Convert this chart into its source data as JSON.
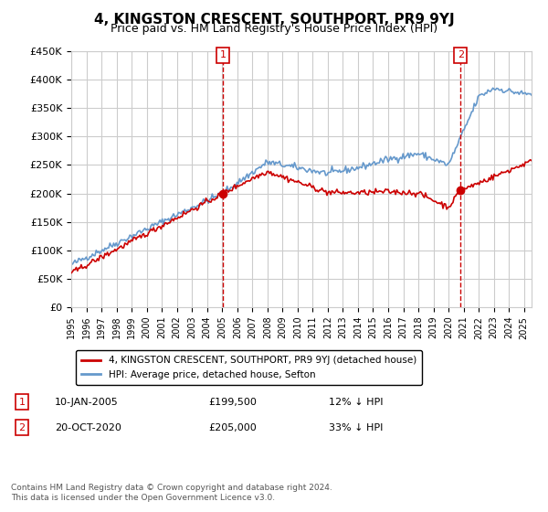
{
  "title": "4, KINGSTON CRESCENT, SOUTHPORT, PR9 9YJ",
  "subtitle": "Price paid vs. HM Land Registry's House Price Index (HPI)",
  "ylabel_ticks": [
    "£0",
    "£50K",
    "£100K",
    "£150K",
    "£200K",
    "£250K",
    "£300K",
    "£350K",
    "£400K",
    "£450K"
  ],
  "ylim": [
    0,
    450000
  ],
  "xlim_start": 1995.0,
  "xlim_end": 2025.5,
  "vline1_x": 2005.04,
  "vline2_x": 2020.8,
  "sale1_label": "1",
  "sale2_label": "2",
  "sale1_date": "10-JAN-2005",
  "sale1_price": "£199,500",
  "sale1_hpi": "12% ↓ HPI",
  "sale2_date": "20-OCT-2020",
  "sale2_price": "£205,000",
  "sale2_hpi": "33% ↓ HPI",
  "legend_label1": "4, KINGSTON CRESCENT, SOUTHPORT, PR9 9YJ (detached house)",
  "legend_label2": "HPI: Average price, detached house, Sefton",
  "footer": "Contains HM Land Registry data © Crown copyright and database right 2024.\nThis data is licensed under the Open Government Licence v3.0.",
  "line1_color": "#cc0000",
  "line2_color": "#6699cc",
  "vline_color": "#cc0000",
  "grid_color": "#cccccc",
  "background_color": "#ffffff",
  "marker1_x": 2005.04,
  "marker1_y": 199500,
  "marker2_x": 2020.8,
  "marker2_y": 205000
}
